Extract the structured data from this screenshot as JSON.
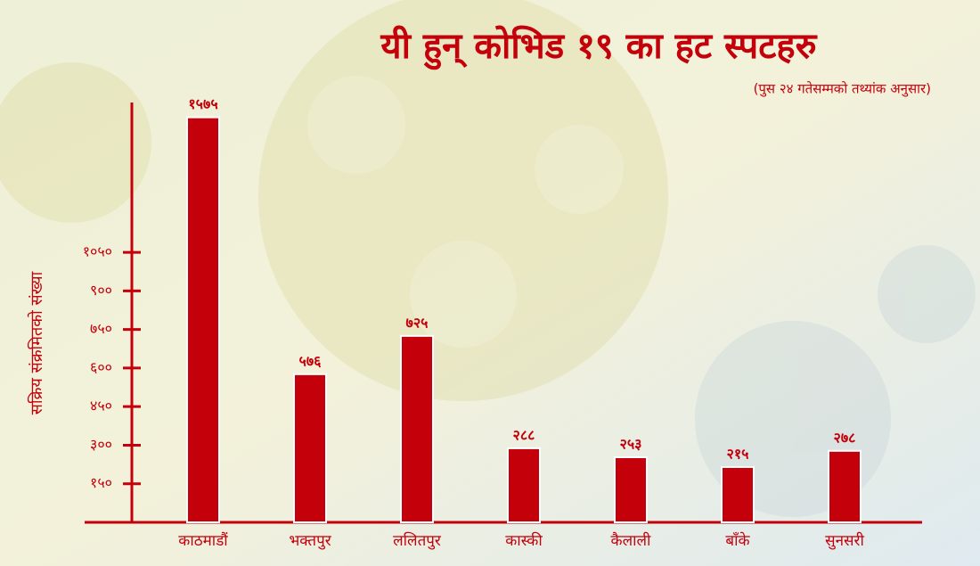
{
  "chart_data": {
    "type": "bar",
    "title": "यी हुन् कोभिड १९ का हट स्पटहरु",
    "subtitle": "(पुस २४ गतेसम्मको तथ्यांक अनुसार)",
    "y_label": "सक्रिय संक्रमितको संख्या",
    "categories": [
      "काठमाडौं",
      "भक्तपुर",
      "ललितपुर",
      "कास्की",
      "कैलाली",
      "बाँके",
      "सुनसरी"
    ],
    "values": [
      1575,
      576,
      725,
      288,
      253,
      215,
      278
    ],
    "value_labels": [
      "१५७५",
      "५७६",
      "७२५",
      "२८८",
      "२५३",
      "२१५",
      "२७८"
    ],
    "color": "#c4000b",
    "ylim": [
      0,
      1650
    ],
    "yticks": [
      {
        "value": 150,
        "label": "१५०"
      },
      {
        "value": 300,
        "label": "३००"
      },
      {
        "value": 450,
        "label": "४५०"
      },
      {
        "value": 600,
        "label": "६००"
      },
      {
        "value": 750,
        "label": "७५०"
      },
      {
        "value": 900,
        "label": "९००"
      },
      {
        "value": 1050,
        "label": "१०५०"
      }
    ]
  }
}
